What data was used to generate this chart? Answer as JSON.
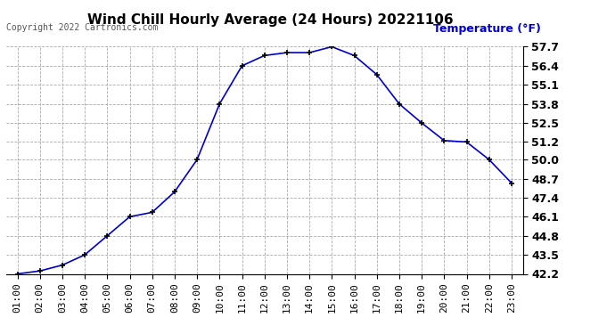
{
  "title": "Wind Chill Hourly Average (24 Hours) 20221106",
  "copyright": "Copyright 2022 Cartronics.com",
  "ylabel": "Temperature (°F)",
  "ylabel_color": "#0000cc",
  "hours": [
    "01:00",
    "02:00",
    "03:00",
    "04:00",
    "05:00",
    "06:00",
    "07:00",
    "08:00",
    "09:00",
    "10:00",
    "11:00",
    "12:00",
    "13:00",
    "14:00",
    "15:00",
    "16:00",
    "17:00",
    "18:00",
    "19:00",
    "20:00",
    "21:00",
    "22:00",
    "23:00"
  ],
  "values": [
    42.2,
    42.4,
    42.8,
    43.5,
    44.8,
    46.1,
    46.4,
    47.8,
    50.0,
    53.8,
    56.4,
    57.1,
    57.3,
    57.3,
    57.7,
    57.1,
    55.8,
    53.8,
    52.5,
    51.3,
    51.2,
    50.0,
    48.4
  ],
  "line_color": "#0000cc",
  "marker": "+",
  "marker_color": "#000000",
  "ylim_min": 42.2,
  "ylim_max": 57.7,
  "yticks": [
    42.2,
    43.5,
    44.8,
    46.1,
    47.4,
    48.7,
    50.0,
    51.2,
    52.5,
    53.8,
    55.1,
    56.4,
    57.7
  ],
  "background_color": "#ffffff",
  "grid_color": "#aaaaaa",
  "title_fontsize": 11,
  "axis_fontsize": 8,
  "copyright_fontsize": 7,
  "ylabel_fontsize": 9
}
